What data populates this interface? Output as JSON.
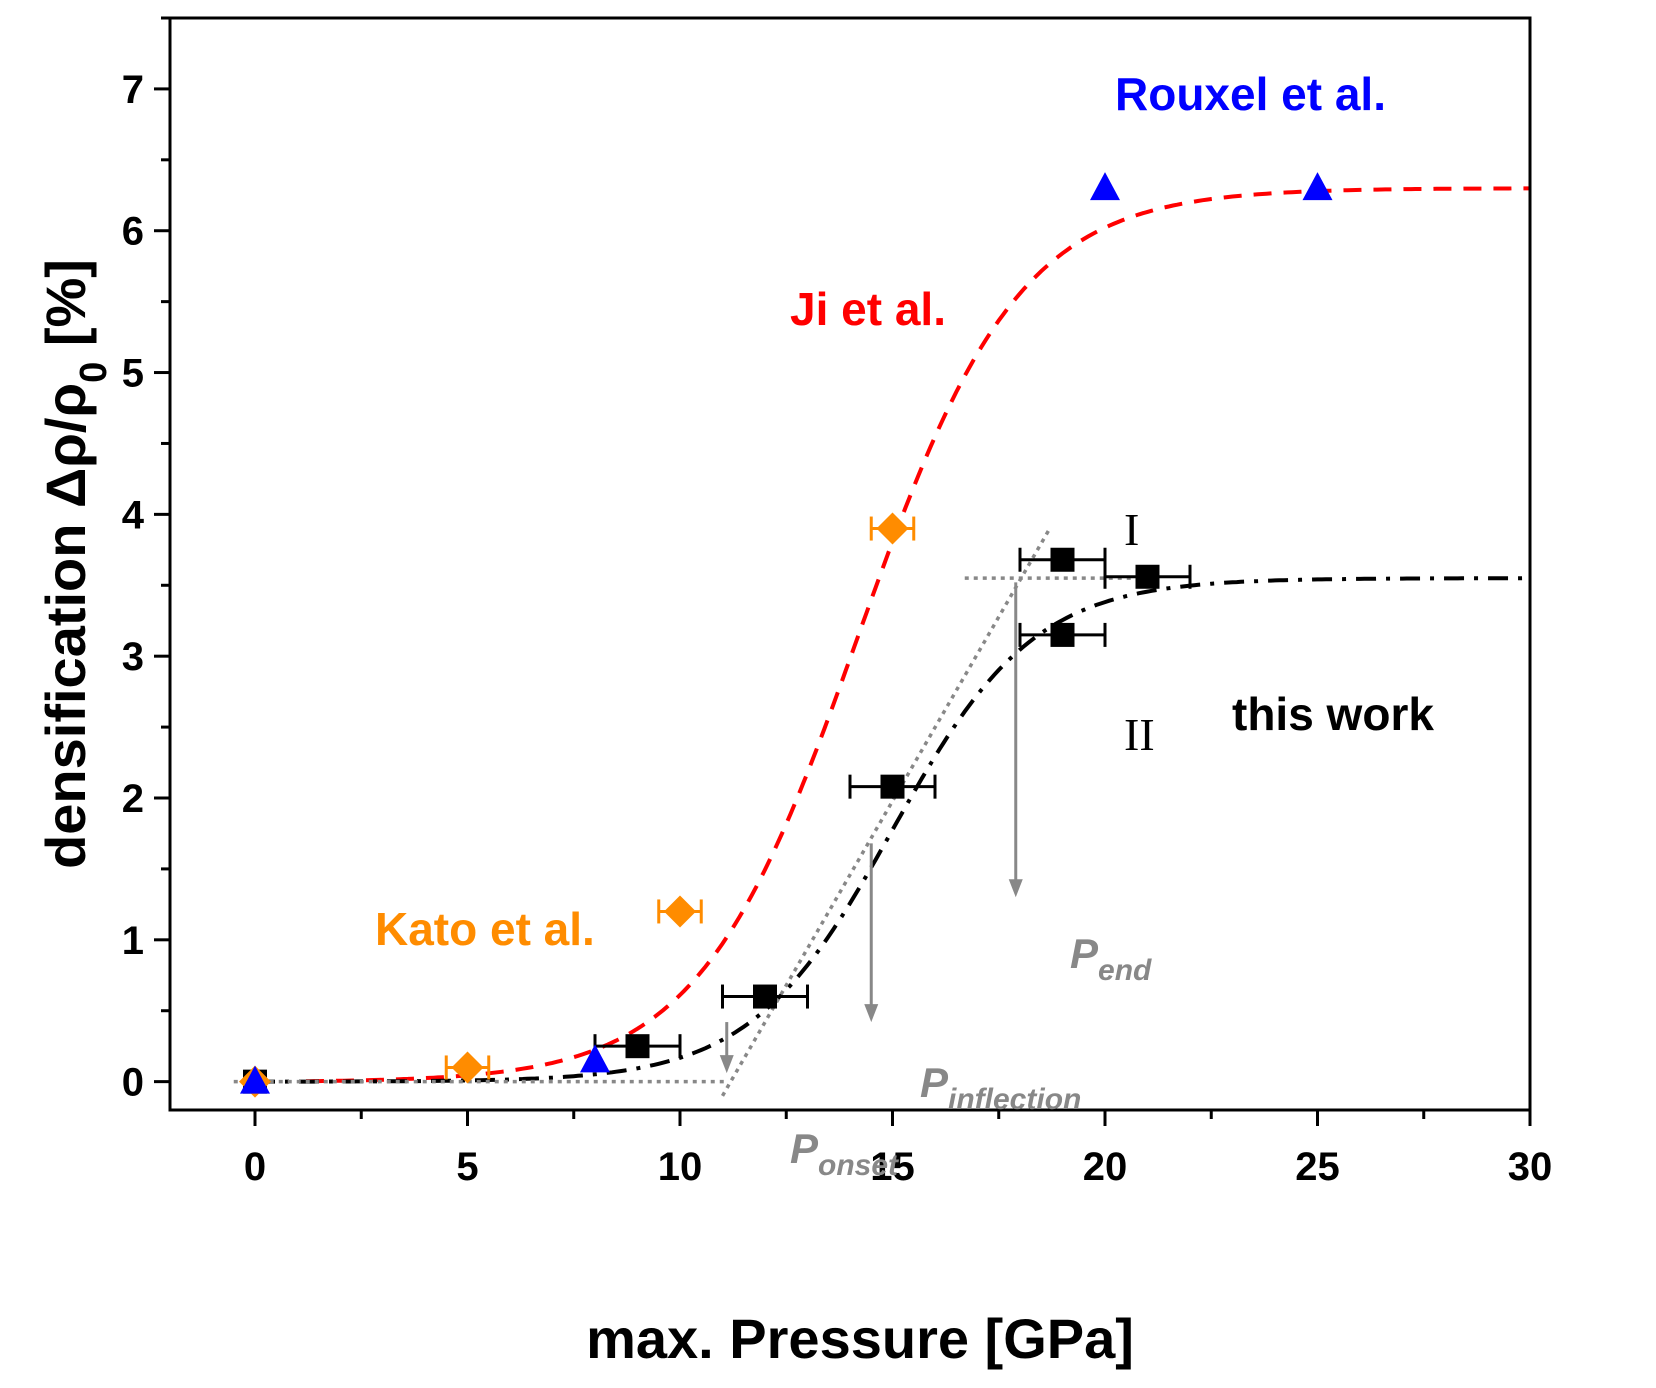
{
  "chart_data": {
    "type": "scatter",
    "xlabel": "max. Pressure [GPa]",
    "ylabel_parts": {
      "text": "densification Δρ/ρ",
      "subscript": "0",
      "unit": " [%]"
    },
    "xlim": [
      -2,
      30
    ],
    "ylim": [
      -0.2,
      7.5
    ],
    "xticks": [
      0,
      5,
      10,
      15,
      20,
      25,
      30
    ],
    "yticks": [
      0,
      1,
      2,
      3,
      4,
      5,
      6,
      7
    ],
    "xminor": [
      2.5,
      7.5,
      12.5,
      17.5,
      22.5,
      27.5
    ],
    "yminor": [
      0.5,
      1.5,
      2.5,
      3.5,
      4.5,
      5.5,
      6.5,
      7.5
    ],
    "colors": {
      "this_work": "#000000",
      "ji": "#ff0000",
      "kato": "#ff8c00",
      "rouxel": "#0000ff",
      "annotation": "#888888"
    },
    "series": [
      {
        "name": "this work",
        "marker": "square",
        "points": [
          {
            "x": 0,
            "y": 0.0,
            "xerr": 0
          },
          {
            "x": 9,
            "y": 0.25,
            "xerr": 1
          },
          {
            "x": 12,
            "y": 0.6,
            "xerr": 1
          },
          {
            "x": 15,
            "y": 2.08,
            "xerr": 1
          },
          {
            "x": 19,
            "y": 3.68,
            "xerr": 1
          },
          {
            "x": 19,
            "y": 3.15,
            "xerr": 1
          },
          {
            "x": 21,
            "y": 3.56,
            "xerr": 1
          }
        ]
      },
      {
        "name": "Kato et al.",
        "marker": "diamond",
        "points": [
          {
            "x": 0,
            "y": 0.0,
            "xerr": 0
          },
          {
            "x": 5,
            "y": 0.1,
            "xerr": 0.5
          },
          {
            "x": 10,
            "y": 1.2,
            "xerr": 0.5
          },
          {
            "x": 15,
            "y": 3.9,
            "xerr": 0.5
          }
        ]
      },
      {
        "name": "Rouxel et al.",
        "marker": "triangle",
        "points": [
          {
            "x": 0,
            "y": 0.0
          },
          {
            "x": 8,
            "y": 0.15
          },
          {
            "x": 20,
            "y": 6.3
          },
          {
            "x": 25,
            "y": 6.3
          }
        ]
      }
    ],
    "fits": [
      {
        "name": "Ji et al.",
        "style": "dashed",
        "A": 6.3,
        "x0": 14.2,
        "k": 0.53,
        "xrange": [
          1.2,
          30
        ]
      },
      {
        "name": "this work fit",
        "style": "dash-dot",
        "A": 3.55,
        "x0": 15.0,
        "k": 0.6,
        "xrange": [
          0,
          30
        ]
      }
    ],
    "annotations": {
      "labels": {
        "ji": "Ji et al.",
        "kato": "Kato et al.",
        "rouxel": "Rouxel et al.",
        "this_work": "this work",
        "roman_one": "I",
        "roman_two": "II"
      },
      "p_onset": {
        "P": "P",
        "sub": "onset",
        "x": 11.1
      },
      "p_inflection": {
        "P": "P",
        "sub": "inflection",
        "x": 14.5
      },
      "p_end": {
        "P": "P",
        "sub": "end",
        "x": 17.9
      },
      "tangent_line": {
        "x1": 11.0,
        "y1": -0.1,
        "x2": 18.7,
        "y2": 3.9
      },
      "baseline_dotted": {
        "x1": -0.5,
        "x2": 11.1,
        "y": 0
      },
      "plateau_dotted": {
        "x1": 16.7,
        "x2": 21.0,
        "y": 3.55
      }
    }
  }
}
